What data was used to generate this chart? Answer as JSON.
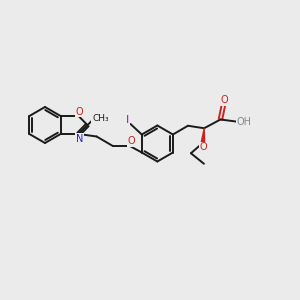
{
  "bg_color": "#ebebeb",
  "bond_color": "#1a1a1a",
  "n_color": "#2222cc",
  "o_color": "#cc2222",
  "i_color": "#bb00bb",
  "ho_color": "#888888",
  "lw": 1.4,
  "fs": 7.0,
  "figsize": [
    3.0,
    3.0
  ],
  "dpi": 100,
  "xlim": [
    0,
    12
  ],
  "ylim": [
    1,
    9
  ]
}
